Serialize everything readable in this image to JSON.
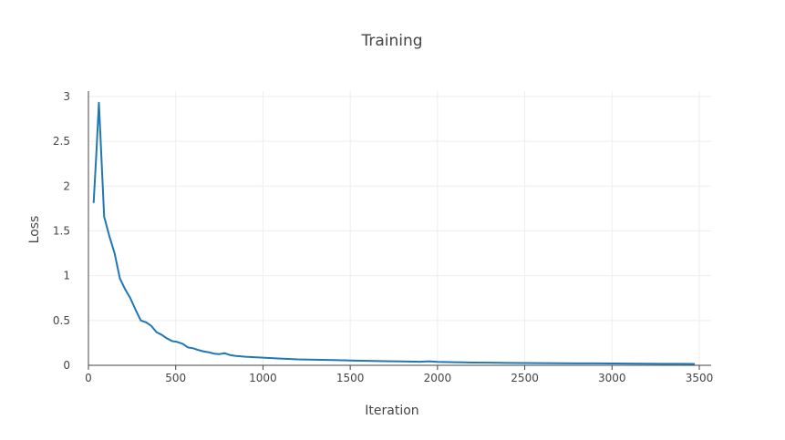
{
  "chart_data": {
    "type": "line",
    "title": "Training",
    "xlabel": "Iteration",
    "ylabel": "Loss",
    "xlim": [
      0,
      3500
    ],
    "ylim": [
      0,
      3
    ],
    "xticks": [
      0,
      500,
      1000,
      1500,
      2000,
      2500,
      3000,
      3500
    ],
    "xtick_labels": [
      "0",
      "500",
      "1000",
      "1500",
      "2000",
      "2500",
      "3000",
      "3500"
    ],
    "yticks": [
      0,
      0.5,
      1,
      1.5,
      2,
      2.5,
      3
    ],
    "ytick_labels": [
      "0",
      "0.5",
      "1",
      "1.5",
      "2",
      "2.5",
      "3"
    ],
    "grid": true,
    "colors": {
      "line": "#1f77b4",
      "grid": "#eeeeee",
      "axis": "#444444"
    },
    "series": [
      {
        "x": [
          30,
          45,
          60,
          90,
          120,
          150,
          180,
          210,
          240,
          270,
          300,
          330,
          360,
          390,
          420,
          450,
          480,
          510,
          540,
          570,
          600,
          630,
          660,
          690,
          720,
          750,
          780,
          810,
          840,
          870,
          900,
          950,
          1000,
          1050,
          1100,
          1200,
          1300,
          1400,
          1500,
          1600,
          1700,
          1800,
          1900,
          1950,
          2000,
          2100,
          2200,
          2300,
          2400,
          2500,
          2600,
          2700,
          2800,
          2900,
          3000,
          3100,
          3200,
          3300,
          3400,
          3470
        ],
        "y": [
          1.82,
          2.35,
          2.93,
          1.66,
          1.44,
          1.25,
          0.97,
          0.85,
          0.75,
          0.62,
          0.5,
          0.48,
          0.44,
          0.37,
          0.34,
          0.3,
          0.27,
          0.26,
          0.24,
          0.2,
          0.19,
          0.17,
          0.155,
          0.145,
          0.13,
          0.125,
          0.135,
          0.115,
          0.105,
          0.1,
          0.095,
          0.09,
          0.085,
          0.08,
          0.075,
          0.066,
          0.062,
          0.058,
          0.054,
          0.05,
          0.046,
          0.043,
          0.04,
          0.045,
          0.038,
          0.034,
          0.031,
          0.029,
          0.027,
          0.025,
          0.024,
          0.023,
          0.022,
          0.021,
          0.02,
          0.019,
          0.018,
          0.017,
          0.016,
          0.015
        ]
      }
    ]
  }
}
